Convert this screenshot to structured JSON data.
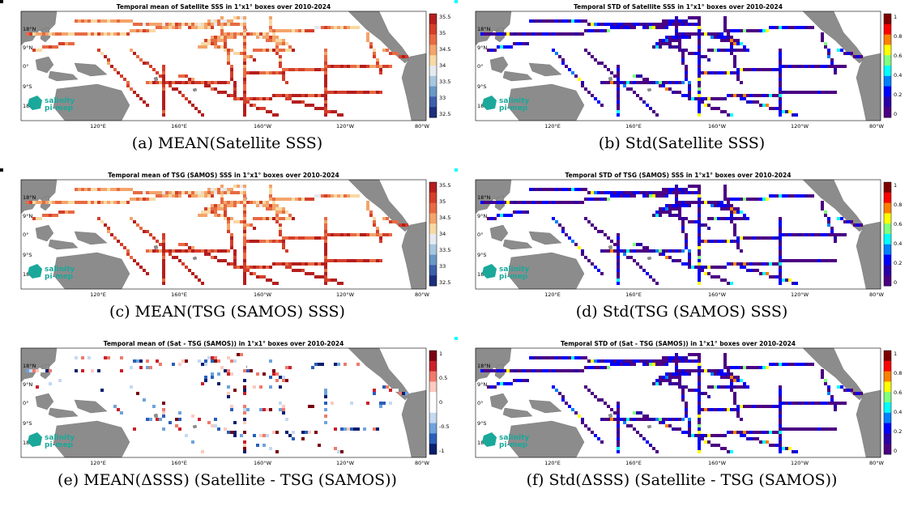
{
  "panels": [
    {
      "id": "a",
      "title": "Temporal mean of Satellite SSS in 1°x1° boxes over 2010-2024",
      "caption": "(a) MEAN(Satellite SSS)",
      "colormap": "redblue",
      "colorbar_ticks": [
        "35.5",
        "35",
        "34.5",
        "34",
        "33.5",
        "33",
        "32.5"
      ]
    },
    {
      "id": "b",
      "title": "Temporal STD of Satellite SSS in 1°x1° boxes over 2010-2024",
      "caption": "(b) Std(Satellite SSS)",
      "colormap": "jet",
      "colorbar_ticks": [
        "1",
        "0.8",
        "0.6",
        "0.4",
        "0.2",
        "0"
      ]
    },
    {
      "id": "c",
      "title": "Temporal mean of TSG (SAMOS) SSS in 1°x1° boxes over 2010-2024",
      "caption": "(c) MEAN(TSG (SAMOS) SSS)",
      "colormap": "redblue",
      "colorbar_ticks": [
        "35.5",
        "35",
        "34.5",
        "34",
        "33.5",
        "33",
        "32.5"
      ]
    },
    {
      "id": "d",
      "title": "Temporal STD of TSG (SAMOS) SSS in 1°x1° boxes over 2010-2024",
      "caption": "(d) Std(TSG (SAMOS) SSS)",
      "colormap": "jet",
      "colorbar_ticks": [
        "1",
        "0.8",
        "0.6",
        "0.4",
        "0.2",
        "0"
      ]
    },
    {
      "id": "e",
      "title": "Temporal mean of (Sat - TSG (SAMOS)) in 1°x1° boxes over 2010-2024",
      "caption": "(e) MEAN(ΔSSS) (Satellite - TSG (SAMOS))",
      "colormap": "diverging",
      "colorbar_ticks": [
        "1",
        "0.5",
        "0",
        "-0.5",
        "-1"
      ]
    },
    {
      "id": "f",
      "title": "Temporal STD of (Sat - TSG (SAMOS)) in 1°x1° boxes over 2010-2024",
      "caption": "(f) Std(ΔSSS) (Satellite - TSG (SAMOS))",
      "colormap": "jet",
      "colorbar_ticks": [
        "1",
        "0.8",
        "0.6",
        "0.4",
        "0.2",
        "0"
      ]
    }
  ],
  "axes": {
    "lat_labels": [
      "18°N",
      "9°N",
      "0°",
      "9°S",
      "18°S"
    ],
    "lon_labels": [
      "120°E",
      "160°E",
      "160°W",
      "120°W",
      "80°W"
    ]
  },
  "logo": {
    "line1": "salinity",
    "line2": "pi-mep"
  },
  "colors": {
    "land": "#8c8c8c",
    "background": "#ffffff"
  }
}
